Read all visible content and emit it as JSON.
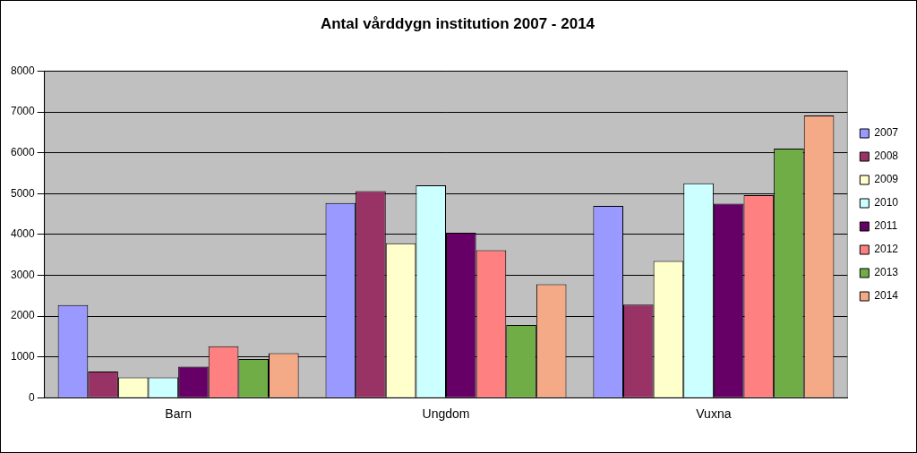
{
  "chart_data": {
    "type": "bar",
    "title": "Antal vårddygn institution 2007 - 2014",
    "categories": [
      "Barn",
      "Ungdom",
      "Vuxna"
    ],
    "series": [
      {
        "name": "2007",
        "color": "#9999ff",
        "values": [
          2270,
          4770,
          4700
        ]
      },
      {
        "name": "2008",
        "color": "#993366",
        "values": [
          640,
          5060,
          2280
        ]
      },
      {
        "name": "2009",
        "color": "#ffffcc",
        "values": [
          500,
          3780,
          3350
        ]
      },
      {
        "name": "2010",
        "color": "#ccffff",
        "values": [
          500,
          5200,
          5250
        ]
      },
      {
        "name": "2011",
        "color": "#660066",
        "values": [
          760,
          4040,
          4750
        ]
      },
      {
        "name": "2012",
        "color": "#ff8080",
        "values": [
          1260,
          3610,
          4960
        ]
      },
      {
        "name": "2013",
        "color": "#70ad47",
        "values": [
          950,
          1780,
          6100
        ]
      },
      {
        "name": "2014",
        "color": "#f4a987",
        "values": [
          1090,
          2780,
          6910
        ]
      }
    ],
    "ylim": [
      0,
      8000
    ],
    "yticks": [
      0,
      1000,
      2000,
      3000,
      4000,
      5000,
      6000,
      7000,
      8000
    ],
    "grid": true,
    "legend": "right"
  }
}
